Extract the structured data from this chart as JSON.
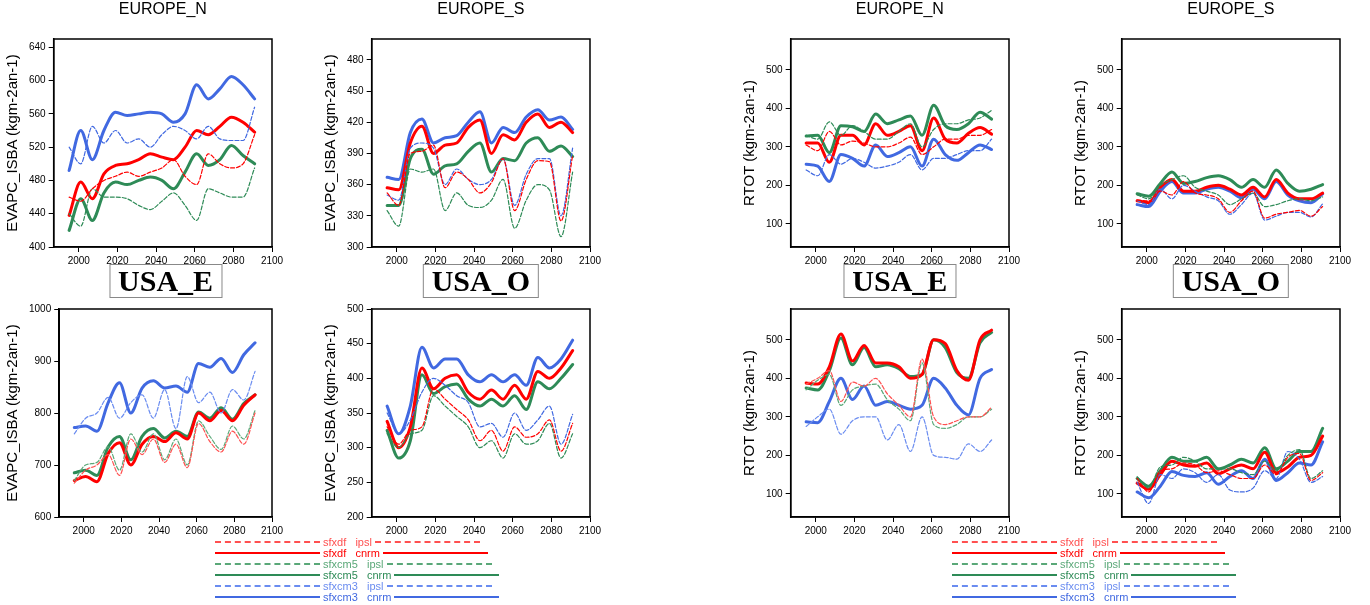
{
  "chart_data": [
    {
      "type": "line",
      "title": "EUROPE_N",
      "ylabel": "EVAPC_ISBA (kgm-2an-1)",
      "x": [
        1995,
        2001,
        2007,
        2013,
        2019,
        2025,
        2031,
        2037,
        2043,
        2049,
        2055,
        2061,
        2067,
        2073,
        2079,
        2085,
        2091
      ],
      "xlim": [
        1987,
        2100
      ],
      "xticks": [
        2000,
        2020,
        2040,
        2060,
        2080,
        2100
      ],
      "ylim": [
        400,
        650
      ],
      "yticks": [
        400,
        440,
        480,
        520,
        560,
        600,
        640
      ],
      "grid": false,
      "legend": false,
      "marker": "none",
      "series": [
        {
          "color": "#ff0000",
          "line_style": "dashed",
          "values": [
            460,
            455,
            470,
            480,
            485,
            490,
            485,
            490,
            495,
            505,
            485,
            475,
            512,
            500,
            495,
            500,
            535
          ]
        },
        {
          "color": "#ff0000",
          "line_style": "solid",
          "values": [
            438,
            478,
            458,
            488,
            498,
            500,
            505,
            512,
            508,
            505,
            520,
            540,
            535,
            545,
            556,
            550,
            538
          ]
        },
        {
          "color": "#2e8b57",
          "line_style": "dashed",
          "values": [
            440,
            425,
            470,
            460,
            460,
            458,
            450,
            445,
            455,
            465,
            450,
            432,
            470,
            465,
            460,
            460,
            495
          ]
        },
        {
          "color": "#2e8b57",
          "line_style": "solid",
          "values": [
            420,
            458,
            432,
            465,
            478,
            475,
            480,
            484,
            480,
            470,
            490,
            512,
            498,
            505,
            522,
            510,
            500
          ]
        },
        {
          "color": "#4169e1",
          "line_style": "dashed",
          "values": [
            520,
            500,
            545,
            525,
            540,
            525,
            530,
            520,
            535,
            545,
            540,
            530,
            545,
            530,
            528,
            528,
            568
          ]
        },
        {
          "color": "#4169e1",
          "line_style": "solid",
          "values": [
            492,
            540,
            505,
            540,
            562,
            558,
            560,
            562,
            560,
            550,
            560,
            595,
            578,
            590,
            605,
            595,
            578
          ]
        }
      ]
    },
    {
      "type": "line",
      "title": "EUROPE_S",
      "ylabel": "EVAPC_ISBA (kgm-2an-1)",
      "x": [
        1995,
        2001,
        2007,
        2013,
        2019,
        2025,
        2031,
        2037,
        2043,
        2049,
        2055,
        2061,
        2067,
        2073,
        2079,
        2085,
        2091
      ],
      "xlim": [
        1987,
        2100
      ],
      "xticks": [
        2000,
        2020,
        2040,
        2060,
        2080,
        2100
      ],
      "ylim": [
        300,
        500
      ],
      "yticks": [
        300,
        330,
        360,
        390,
        420,
        450,
        480
      ],
      "grid": false,
      "legend": false,
      "marker": "none",
      "series": [
        {
          "color": "#ff0000",
          "line_style": "dashed",
          "values": [
            352,
            340,
            390,
            392,
            398,
            357,
            372,
            365,
            352,
            362,
            385,
            335,
            365,
            383,
            382,
            325,
            388
          ]
        },
        {
          "color": "#ff0000",
          "line_style": "solid",
          "values": [
            357,
            355,
            400,
            416,
            390,
            398,
            400,
            415,
            422,
            390,
            408,
            403,
            420,
            428,
            415,
            420,
            410
          ]
        },
        {
          "color": "#2e8b57",
          "line_style": "dashed",
          "values": [
            335,
            320,
            375,
            372,
            375,
            335,
            352,
            340,
            338,
            345,
            365,
            318,
            345,
            360,
            355,
            310,
            372
          ]
        },
        {
          "color": "#2e8b57",
          "line_style": "solid",
          "values": [
            340,
            340,
            385,
            394,
            370,
            378,
            380,
            392,
            400,
            372,
            385,
            383,
            400,
            405,
            392,
            397,
            387
          ]
        },
        {
          "color": "#4169e1",
          "line_style": "dashed",
          "values": [
            350,
            345,
            395,
            400,
            395,
            360,
            375,
            365,
            360,
            365,
            385,
            340,
            370,
            385,
            385,
            330,
            395
          ]
        },
        {
          "color": "#4169e1",
          "line_style": "solid",
          "values": [
            367,
            365,
            410,
            423,
            400,
            405,
            407,
            420,
            430,
            400,
            415,
            410,
            425,
            432,
            422,
            425,
            413
          ]
        }
      ]
    },
    {
      "type": "line",
      "title": "EUROPE_N",
      "ylabel": "RTOT (kgm-2an-1)",
      "x": [
        1995,
        2001,
        2007,
        2013,
        2019,
        2025,
        2031,
        2037,
        2043,
        2049,
        2055,
        2061,
        2067,
        2073,
        2079,
        2085,
        2091
      ],
      "xlim": [
        1987,
        2100
      ],
      "xticks": [
        2000,
        2020,
        2040,
        2060,
        2080,
        2100
      ],
      "ylim": [
        40,
        580
      ],
      "yticks": [
        100,
        200,
        300,
        400,
        500
      ],
      "grid": false,
      "legend": false,
      "marker": "none",
      "series": [
        {
          "color": "#ff0000",
          "line_style": "dashed",
          "values": [
            305,
            290,
            340,
            305,
            315,
            310,
            300,
            300,
            310,
            325,
            280,
            300,
            320,
            320,
            330,
            330,
            345
          ]
        },
        {
          "color": "#ff0000",
          "line_style": "solid",
          "values": [
            310,
            310,
            260,
            330,
            330,
            305,
            360,
            330,
            340,
            355,
            290,
            375,
            320,
            310,
            335,
            350,
            333
          ]
        },
        {
          "color": "#2e8b57",
          "line_style": "dashed",
          "values": [
            330,
            320,
            365,
            330,
            355,
            340,
            320,
            320,
            340,
            360,
            300,
            345,
            360,
            360,
            370,
            375,
            395
          ]
        },
        {
          "color": "#2e8b57",
          "line_style": "solid",
          "values": [
            328,
            330,
            285,
            355,
            352,
            340,
            385,
            360,
            370,
            380,
            330,
            408,
            355,
            345,
            360,
            390,
            372
          ]
        },
        {
          "color": "#4169e1",
          "line_style": "dashed",
          "values": [
            240,
            225,
            280,
            255,
            270,
            260,
            245,
            250,
            260,
            280,
            240,
            270,
            270,
            280,
            290,
            290,
            320
          ]
        },
        {
          "color": "#4169e1",
          "line_style": "solid",
          "values": [
            255,
            250,
            210,
            280,
            270,
            250,
            305,
            275,
            285,
            300,
            250,
            320,
            280,
            265,
            285,
            305,
            293
          ]
        }
      ]
    },
    {
      "type": "line",
      "title": "EUROPE_S",
      "ylabel": "RTOT (kgm-2an-1)",
      "x": [
        1995,
        2001,
        2007,
        2013,
        2019,
        2025,
        2031,
        2037,
        2043,
        2049,
        2055,
        2061,
        2067,
        2073,
        2079,
        2085,
        2091
      ],
      "xlim": [
        1987,
        2100
      ],
      "xticks": [
        2000,
        2020,
        2040,
        2060,
        2080,
        2100
      ],
      "ylim": [
        40,
        580
      ],
      "yticks": [
        100,
        200,
        300,
        400,
        500
      ],
      "grid": false,
      "legend": false,
      "marker": "none",
      "series": [
        {
          "color": "#ff0000",
          "line_style": "dashed",
          "values": [
            162,
            160,
            185,
            175,
            210,
            180,
            175,
            165,
            130,
            160,
            185,
            115,
            125,
            130,
            135,
            120,
            145
          ]
        },
        {
          "color": "#ff0000",
          "line_style": "solid",
          "values": [
            160,
            155,
            195,
            215,
            185,
            185,
            195,
            200,
            190,
            175,
            195,
            170,
            215,
            180,
            165,
            165,
            180
          ]
        },
        {
          "color": "#2e8b57",
          "line_style": "dashed",
          "values": [
            175,
            165,
            200,
            215,
            225,
            195,
            185,
            175,
            150,
            165,
            180,
            145,
            150,
            160,
            165,
            160,
            170
          ]
        },
        {
          "color": "#2e8b57",
          "line_style": "solid",
          "values": [
            178,
            172,
            205,
            235,
            205,
            210,
            220,
            225,
            215,
            195,
            215,
            195,
            240,
            205,
            185,
            190,
            202
          ]
        },
        {
          "color": "#4169e1",
          "line_style": "dashed",
          "values": [
            160,
            150,
            190,
            165,
            200,
            185,
            170,
            160,
            125,
            150,
            180,
            110,
            120,
            130,
            130,
            118,
            152
          ]
        },
        {
          "color": "#4169e1",
          "line_style": "solid",
          "values": [
            150,
            145,
            185,
            210,
            180,
            180,
            190,
            195,
            185,
            168,
            190,
            165,
            210,
            175,
            160,
            155,
            178
          ]
        }
      ]
    },
    {
      "type": "line",
      "title": "USA_E",
      "ylabel": "EVAPC_ISBA (kgm-2an-1)",
      "x": [
        1995,
        2001,
        2007,
        2013,
        2019,
        2025,
        2031,
        2037,
        2043,
        2049,
        2055,
        2061,
        2067,
        2073,
        2079,
        2085,
        2091
      ],
      "xlim": [
        1987,
        2100
      ],
      "xticks": [
        2000,
        2020,
        2040,
        2060,
        2080,
        2100
      ],
      "ylim": [
        600,
        1000
      ],
      "yticks": [
        600,
        700,
        800,
        900,
        1000
      ],
      "grid": false,
      "legend": "bottom",
      "marker": "none",
      "series": [
        {
          "name": "sfxdf   ipsl",
          "color": "#ff5050",
          "line_style": "dashed",
          "values": [
            665,
            690,
            700,
            720,
            680,
            750,
            720,
            750,
            705,
            740,
            695,
            780,
            745,
            725,
            765,
            740,
            800
          ]
        },
        {
          "name": "sfxdf   cnrm",
          "color": "#ff0000",
          "line_style": "solid",
          "values": [
            670,
            678,
            668,
            722,
            743,
            700,
            740,
            755,
            745,
            762,
            750,
            800,
            785,
            805,
            785,
            815,
            835
          ]
        },
        {
          "name": "sfxcm5   ipsl",
          "color": "#5aa878",
          "line_style": "dashed",
          "values": [
            670,
            700,
            705,
            735,
            690,
            760,
            725,
            760,
            710,
            750,
            700,
            785,
            755,
            730,
            775,
            750,
            805
          ]
        },
        {
          "name": "sfxcm5   cnrm",
          "color": "#2e8b57",
          "line_style": "solid",
          "values": [
            685,
            690,
            680,
            735,
            755,
            710,
            755,
            770,
            752,
            765,
            755,
            802,
            790,
            810,
            788,
            818,
            835
          ]
        },
        {
          "name": "sfxcm3   ipsl",
          "color": "#6a8cf0",
          "line_style": "dashed",
          "values": [
            760,
            790,
            800,
            830,
            790,
            820,
            835,
            790,
            845,
            770,
            870,
            820,
            840,
            800,
            845,
            825,
            880
          ]
        },
        {
          "name": "sfxcm3   cnrm",
          "color": "#4169e1",
          "line_style": "solid",
          "values": [
            772,
            775,
            765,
            820,
            858,
            800,
            848,
            862,
            848,
            852,
            840,
            895,
            888,
            905,
            878,
            912,
            935
          ]
        }
      ]
    },
    {
      "type": "line",
      "title": "USA_O",
      "ylabel": "EVAPC_ISBA (kgm-2an-1)",
      "x": [
        1995,
        2001,
        2007,
        2013,
        2019,
        2025,
        2031,
        2037,
        2043,
        2049,
        2055,
        2061,
        2067,
        2073,
        2079,
        2085,
        2091
      ],
      "xlim": [
        1987,
        2100
      ],
      "xticks": [
        2000,
        2020,
        2040,
        2060,
        2080,
        2100
      ],
      "ylim": [
        200,
        500
      ],
      "yticks": [
        200,
        250,
        300,
        350,
        400,
        450,
        500
      ],
      "grid": false,
      "legend": false,
      "marker": "none",
      "series": [
        {
          "color": "#ff0000",
          "line_style": "dashed",
          "values": [
            330,
            305,
            325,
            330,
            385,
            370,
            355,
            340,
            310,
            325,
            295,
            330,
            315,
            320,
            340,
            295,
            335
          ]
        },
        {
          "color": "#ff0000",
          "line_style": "solid",
          "values": [
            338,
            300,
            330,
            415,
            385,
            400,
            405,
            380,
            370,
            383,
            370,
            390,
            370,
            410,
            400,
            415,
            440
          ]
        },
        {
          "color": "#2e8b57",
          "line_style": "dashed",
          "values": [
            320,
            300,
            320,
            325,
            375,
            360,
            345,
            330,
            300,
            310,
            285,
            320,
            305,
            310,
            335,
            285,
            320
          ]
        },
        {
          "color": "#2e8b57",
          "line_style": "solid",
          "values": [
            325,
            285,
            310,
            405,
            378,
            388,
            392,
            370,
            360,
            370,
            360,
            375,
            355,
            395,
            385,
            400,
            420
          ]
        },
        {
          "color": "#4169e1",
          "line_style": "dashed",
          "values": [
            350,
            320,
            340,
            380,
            400,
            390,
            375,
            365,
            330,
            335,
            315,
            350,
            325,
            340,
            360,
            305,
            348
          ]
        },
        {
          "color": "#4169e1",
          "line_style": "solid",
          "values": [
            360,
            320,
            360,
            445,
            415,
            428,
            428,
            405,
            395,
            405,
            395,
            405,
            390,
            430,
            415,
            428,
            455
          ]
        }
      ]
    },
    {
      "type": "line",
      "title": "USA_E",
      "ylabel": "RTOT (kgm-2an-1)",
      "x": [
        1995,
        2001,
        2007,
        2013,
        2019,
        2025,
        2031,
        2037,
        2043,
        2049,
        2055,
        2061,
        2067,
        2073,
        2079,
        2085,
        2091
      ],
      "xlim": [
        1987,
        2100
      ],
      "xticks": [
        2000,
        2020,
        2040,
        2060,
        2080,
        2100
      ],
      "ylim": [
        40,
        580
      ],
      "yticks": [
        100,
        200,
        300,
        400,
        500
      ],
      "grid": false,
      "legend": "bottom",
      "marker": "none",
      "series": [
        {
          "name": "sfxdf   ipsl",
          "color": "#ff5050",
          "line_style": "dashed",
          "values": [
            385,
            400,
            420,
            340,
            390,
            380,
            400,
            360,
            330,
            300,
            450,
            300,
            280,
            290,
            300,
            300,
            325
          ]
        },
        {
          "name": "sfxdf   cnrm",
          "color": "#ff0000",
          "line_style": "solid",
          "values": [
            388,
            385,
            430,
            515,
            445,
            485,
            440,
            440,
            430,
            400,
            410,
            500,
            490,
            420,
            395,
            500,
            525
          ]
        },
        {
          "name": "sfxcm5   ipsl",
          "color": "#5aa878",
          "line_style": "dashed",
          "values": [
            370,
            395,
            410,
            330,
            370,
            380,
            385,
            345,
            320,
            290,
            440,
            280,
            270,
            280,
            300,
            300,
            320
          ]
        },
        {
          "name": "sfxcm5   cnrm",
          "color": "#2e8b57",
          "line_style": "solid",
          "values": [
            375,
            370,
            420,
            505,
            435,
            480,
            430,
            435,
            425,
            405,
            410,
            500,
            480,
            415,
            400,
            492,
            519
          ]
        },
        {
          "name": "sfxcm3   ipsl",
          "color": "#6a8cf0",
          "line_style": "dashed",
          "values": [
            275,
            300,
            320,
            255,
            290,
            300,
            300,
            240,
            280,
            210,
            300,
            200,
            195,
            190,
            230,
            210,
            240
          ]
        },
        {
          "name": "sfxcm3   cnrm",
          "color": "#4169e1",
          "line_style": "solid",
          "values": [
            287,
            285,
            340,
            400,
            345,
            380,
            330,
            340,
            330,
            320,
            330,
            400,
            375,
            330,
            305,
            400,
            423
          ]
        }
      ]
    },
    {
      "type": "line",
      "title": "USA_O",
      "ylabel": "RTOT (kgm-2an-1)",
      "x": [
        1995,
        2001,
        2007,
        2013,
        2019,
        2025,
        2031,
        2037,
        2043,
        2049,
        2055,
        2061,
        2067,
        2073,
        2079,
        2085,
        2091
      ],
      "xlim": [
        1987,
        2100
      ],
      "xticks": [
        2000,
        2020,
        2040,
        2060,
        2080,
        2100
      ],
      "ylim": [
        40,
        580
      ],
      "yticks": [
        100,
        200,
        300,
        400,
        500
      ],
      "grid": false,
      "legend": false,
      "marker": "none",
      "series": [
        {
          "color": "#ff0000",
          "line_style": "dashed",
          "values": [
            140,
            105,
            160,
            165,
            180,
            175,
            155,
            160,
            150,
            140,
            140,
            175,
            150,
            195,
            205,
            135,
            155
          ]
        },
        {
          "color": "#ff0000",
          "line_style": "solid",
          "values": [
            128,
            112,
            150,
            185,
            175,
            172,
            180,
            152,
            165,
            175,
            165,
            208,
            155,
            170,
            195,
            200,
            250
          ]
        },
        {
          "color": "#2e8b57",
          "line_style": "dashed",
          "values": [
            145,
            115,
            170,
            175,
            195,
            185,
            165,
            165,
            165,
            155,
            150,
            185,
            160,
            200,
            215,
            140,
            160
          ]
        },
        {
          "color": "#2e8b57",
          "line_style": "solid",
          "values": [
            140,
            120,
            160,
            195,
            185,
            185,
            195,
            165,
            175,
            190,
            180,
            220,
            165,
            185,
            210,
            210,
            270
          ]
        },
        {
          "color": "#4169e1",
          "line_style": "dashed",
          "values": [
            130,
            75,
            150,
            140,
            165,
            155,
            130,
            150,
            110,
            105,
            115,
            160,
            140,
            210,
            190,
            130,
            145
          ]
        },
        {
          "color": "#4169e1",
          "line_style": "solid",
          "values": [
            105,
            90,
            120,
            158,
            148,
            145,
            155,
            125,
            145,
            160,
            140,
            190,
            135,
            155,
            180,
            175,
            235
          ]
        }
      ]
    }
  ]
}
